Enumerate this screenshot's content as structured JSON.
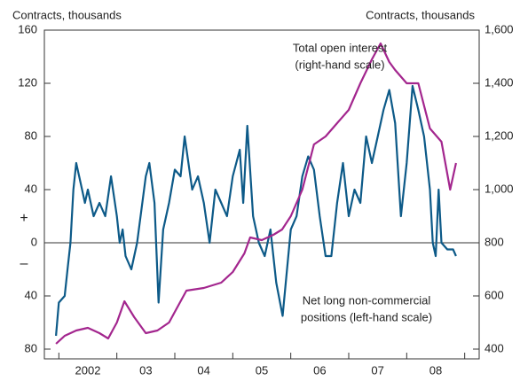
{
  "chart_data": {
    "type": "line",
    "y_label": "Contracts, thousands",
    "y2_label": "Contracts, thousands",
    "sign_labels": [
      "+",
      "–"
    ],
    "categories": [
      "2002",
      "03",
      "04",
      "05",
      "06",
      "07",
      "08"
    ],
    "xlim": [
      2001.75,
      2009.25
    ],
    "xticks": [
      2002,
      2003,
      2004,
      2005,
      2006,
      2007,
      2008,
      2009
    ],
    "ylim": [
      -80,
      160
    ],
    "yticks": [
      {
        "value": -80,
        "label": "80"
      },
      {
        "value": -40,
        "label": "40"
      },
      0,
      40,
      80,
      120,
      160
    ],
    "y2lim": [
      400,
      1600
    ],
    "y2ticks": [
      400,
      600,
      800,
      {
        "value": 1000,
        "label": "1,000"
      },
      {
        "value": 1200,
        "label": "1,200"
      },
      {
        "value": 1400,
        "label": "1,400"
      },
      {
        "value": 1600,
        "label": "1,600"
      }
    ],
    "zero_line": true,
    "annotations": [
      {
        "lines": [
          "Total open interest",
          "(right-hand scale)"
        ]
      },
      {
        "lines": [
          "Net long non-commercial",
          "positions (left-hand scale)"
        ]
      }
    ],
    "series": [
      {
        "name": "Net long non-commercial positions",
        "color": "#0d5a88",
        "x": [
          1.95,
          2.0,
          2.1,
          2.15,
          2.2,
          2.25,
          2.3,
          2.35,
          2.4,
          2.45,
          2.5,
          2.6,
          2.7,
          2.8,
          2.9,
          3.0,
          3.05,
          3.1,
          3.15,
          3.25,
          3.35,
          3.5,
          3.56,
          3.65,
          3.72,
          3.8,
          3.9,
          4.0,
          4.1,
          4.17,
          4.3,
          4.4,
          4.5,
          4.6,
          4.7,
          4.8,
          4.9,
          5.0,
          5.12,
          5.18,
          5.25,
          5.35,
          5.45,
          5.55,
          5.65,
          5.75,
          5.86,
          6.0,
          6.1,
          6.2,
          6.3,
          6.4,
          6.5,
          6.6,
          6.7,
          6.8,
          6.9,
          7.0,
          7.1,
          7.2,
          7.3,
          7.4,
          7.5,
          7.6,
          7.7,
          7.8,
          7.9,
          8.0,
          8.1,
          8.2,
          8.3,
          8.4,
          8.45,
          8.5,
          8.55,
          8.6,
          8.7,
          8.8,
          8.85
        ],
        "values": [
          -70,
          -45,
          -40,
          -20,
          0,
          40,
          60,
          50,
          40,
          30,
          40,
          20,
          30,
          20,
          50,
          20,
          0,
          10,
          -10,
          -20,
          0,
          50,
          60,
          30,
          -45,
          10,
          30,
          55,
          50,
          80,
          40,
          50,
          30,
          0,
          40,
          30,
          20,
          50,
          70,
          30,
          88,
          20,
          0,
          -10,
          10,
          -30,
          -55,
          10,
          20,
          50,
          65,
          55,
          20,
          -10,
          -10,
          30,
          60,
          20,
          40,
          30,
          80,
          60,
          80,
          100,
          115,
          90,
          20,
          60,
          118,
          100,
          80,
          40,
          0,
          -10,
          40,
          0,
          -5,
          -5,
          -10
        ]
      },
      {
        "name": "Total open interest",
        "color": "#a3268e",
        "axis": "y2",
        "x": [
          1.95,
          2.1,
          2.3,
          2.5,
          2.7,
          2.85,
          3.0,
          3.13,
          3.3,
          3.5,
          3.7,
          3.9,
          4.0,
          4.2,
          4.5,
          4.8,
          5.0,
          5.2,
          5.3,
          5.5,
          5.7,
          5.85,
          6.0,
          6.2,
          6.4,
          6.6,
          6.8,
          7.0,
          7.2,
          7.4,
          7.55,
          7.7,
          7.8,
          8.0,
          8.2,
          8.4,
          8.6,
          8.75,
          8.85
        ],
        "values": [
          420,
          450,
          470,
          480,
          460,
          440,
          500,
          580,
          520,
          460,
          470,
          500,
          540,
          620,
          630,
          650,
          690,
          760,
          820,
          810,
          830,
          850,
          900,
          1000,
          1170,
          1200,
          1250,
          1300,
          1400,
          1490,
          1550,
          1480,
          1450,
          1400,
          1400,
          1230,
          1180,
          1000,
          1100
        ]
      }
    ]
  }
}
